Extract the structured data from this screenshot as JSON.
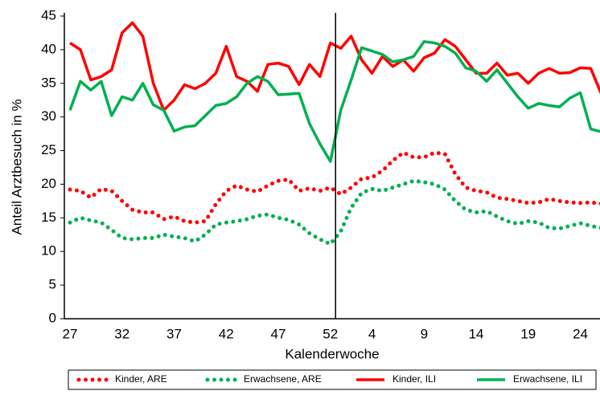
{
  "chart_data": {
    "type": "line",
    "ylabel": "Anteil Arztbesuch in %",
    "xlabel": "Kalenderwoche",
    "categories": [
      "27",
      null,
      null,
      null,
      null,
      "32",
      null,
      null,
      null,
      null,
      "37",
      null,
      null,
      null,
      null,
      "42",
      null,
      null,
      null,
      null,
      "47",
      null,
      null,
      null,
      null,
      "52",
      null,
      null,
      null,
      "4",
      null,
      null,
      null,
      null,
      "9",
      null,
      null,
      null,
      null,
      "14",
      null,
      null,
      null,
      null,
      "19",
      null,
      null,
      null,
      null,
      "24",
      null,
      null
    ],
    "ylim": [
      0,
      45
    ],
    "yticks": [
      0,
      5,
      10,
      15,
      20,
      25,
      30,
      35,
      40,
      45
    ],
    "grid": false,
    "series": [
      {
        "name": "Kinder, ARE",
        "color": "#ff0000",
        "linestyle": "dotted",
        "values": [
          19.2,
          19,
          18,
          19.3,
          19,
          17.5,
          16.2,
          15.8,
          15.8,
          14.8,
          15.2,
          14.5,
          14.3,
          14.5,
          17,
          19,
          19.8,
          19.2,
          18.9,
          19.8,
          20.5,
          20.7,
          19,
          19.4,
          19,
          19.5,
          18.5,
          19.5,
          20.8,
          21,
          22,
          23.5,
          24.7,
          24,
          24,
          24.7,
          24.5,
          21.5,
          19.5,
          19,
          18.8,
          18,
          17.8,
          17.5,
          17.2,
          17.3,
          17.8,
          17.5,
          17.3,
          17.2,
          17.3,
          17.1
        ]
      },
      {
        "name": "Erwachsene, ARE",
        "color": "#00b050",
        "linestyle": "dotted",
        "values": [
          14.3,
          15,
          14.6,
          14.3,
          13.2,
          12,
          11.8,
          12,
          12,
          12.5,
          12.2,
          12,
          11.5,
          12.5,
          14,
          14.3,
          14.5,
          14.8,
          15.3,
          15.5,
          15,
          14.7,
          14,
          12.7,
          11.8,
          11.1,
          13,
          16.5,
          18.7,
          19.3,
          19,
          19.5,
          20,
          20.5,
          20.3,
          20,
          19.2,
          17.5,
          16.2,
          15.8,
          16,
          15.2,
          14.5,
          14.1,
          14.5,
          14.3,
          13.5,
          13.4,
          13.8,
          14.2,
          13.8,
          13.5
        ]
      },
      {
        "name": "Kinder, ILI",
        "color": "#ff0000",
        "linestyle": "solid",
        "values": [
          41,
          40,
          35.5,
          36,
          37,
          42.5,
          44,
          42,
          35,
          31,
          32.5,
          34.8,
          34.2,
          35,
          36.5,
          40.5,
          36,
          35.3,
          33.8,
          37.8,
          38,
          37.5,
          34.8,
          37.8,
          36,
          41,
          40.2,
          42,
          38.5,
          36.5,
          39,
          37.5,
          38.5,
          36.8,
          38.8,
          39.5,
          41.5,
          40.5,
          38.5,
          36.5,
          36.5,
          38,
          36.2,
          36.5,
          35,
          36.5,
          37.2,
          36.5,
          36.6,
          37.3,
          37.2,
          33.5
        ]
      },
      {
        "name": "Erwachsene, ILI",
        "color": "#00b050",
        "linestyle": "solid",
        "values": [
          31,
          35.3,
          34,
          35.3,
          30.2,
          33,
          32.5,
          35,
          31.8,
          31,
          27.9,
          28.5,
          28.7,
          30.2,
          31.7,
          32,
          33,
          35,
          36,
          35.3,
          33.3,
          33.4,
          33.5,
          29,
          26,
          23.4,
          31,
          35.5,
          40.3,
          39.8,
          39.3,
          38.2,
          38.5,
          39,
          41.2,
          41,
          40.5,
          39.5,
          37.3,
          36.8,
          35.3,
          37,
          35,
          33,
          31.3,
          32,
          31.7,
          31.5,
          32.8,
          33.6,
          28.2,
          27.8
        ]
      }
    ]
  }
}
